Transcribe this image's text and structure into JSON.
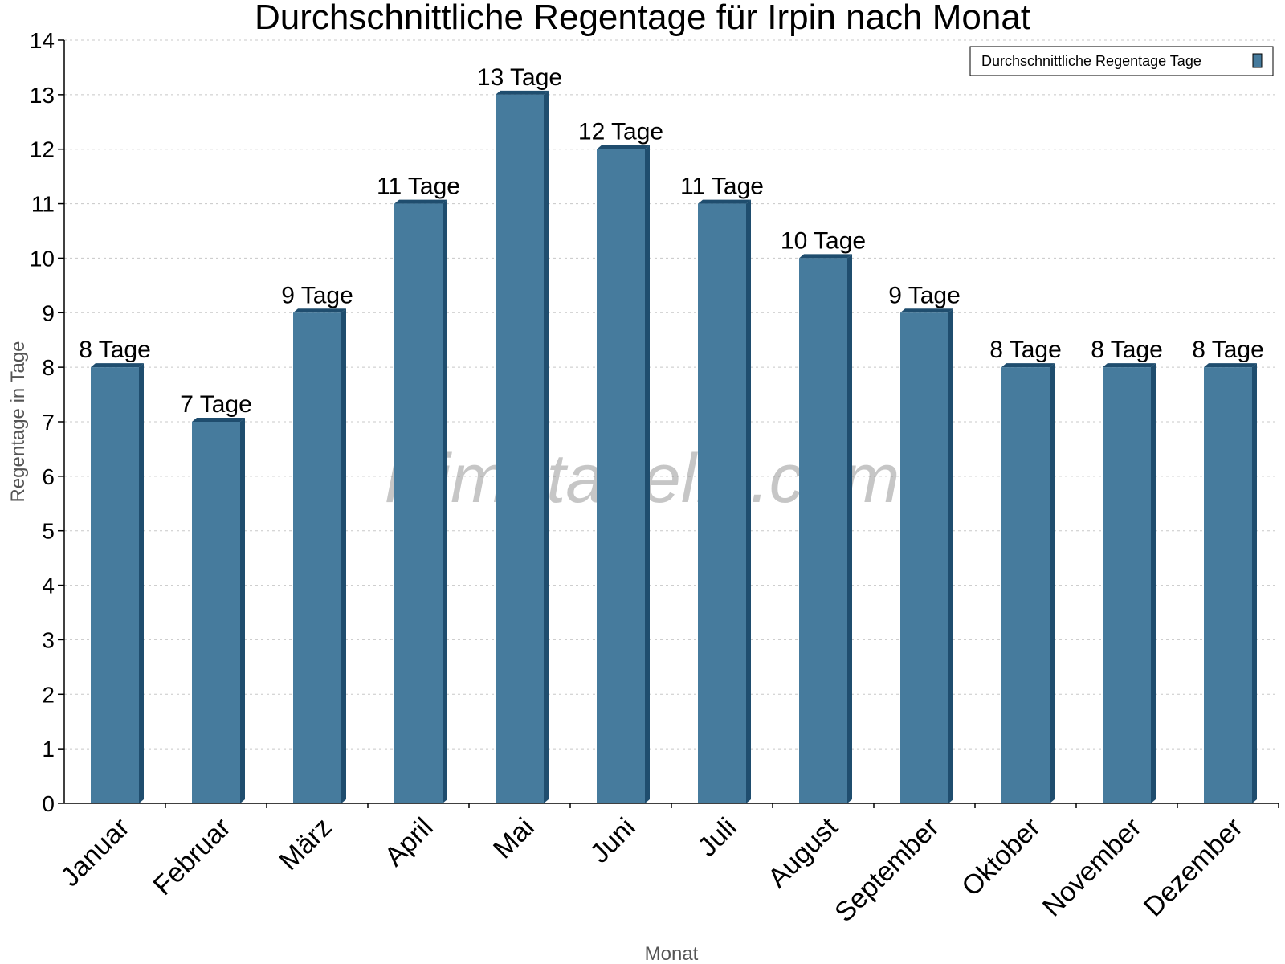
{
  "chart_data": {
    "type": "bar",
    "title": "Durchschnittliche Regentage für Irpin nach Monat",
    "xlabel": "Monat",
    "ylabel": "Regentage in Tage",
    "categories": [
      "Januar",
      "Februar",
      "März",
      "April",
      "Mai",
      "Juni",
      "Juli",
      "August",
      "September",
      "Oktober",
      "November",
      "Dezember"
    ],
    "series": [
      {
        "name": "Durchschnittliche Regentage Tage",
        "values": [
          8,
          7,
          9,
          11,
          13,
          12,
          11,
          10,
          9,
          8,
          8,
          8
        ],
        "labels": [
          "8 Tage",
          "7 Tage",
          "9 Tage",
          "11 Tage",
          "13 Tage",
          "12 Tage",
          "11 Tage",
          "10 Tage",
          "9 Tage",
          "8 Tage",
          "8 Tage",
          "8 Tage"
        ]
      }
    ],
    "ylim": [
      0,
      14
    ],
    "yticks": [
      0,
      1,
      2,
      3,
      4,
      5,
      6,
      7,
      8,
      9,
      10,
      11,
      12,
      13,
      14
    ],
    "grid": true,
    "legend_position": "top-right",
    "colors": {
      "bar": "#467b9d",
      "bar_side": "#1f4d6e",
      "grid": "#c8c8c8"
    },
    "watermark": "klimatabelle.com"
  }
}
